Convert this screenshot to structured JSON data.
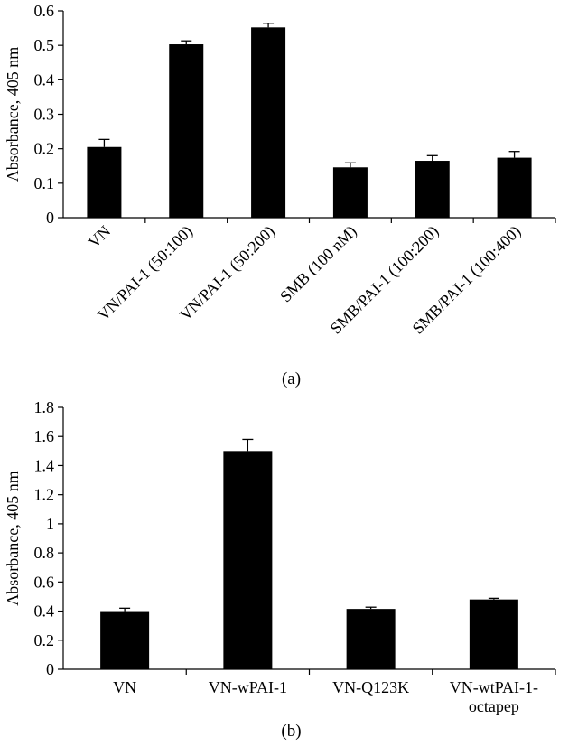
{
  "chart_data": [
    {
      "type": "bar",
      "panel_label": "(a)",
      "ylabel": "Absorbance, 405 nm",
      "ylim": [
        0,
        0.6
      ],
      "yticks": [
        0,
        0.1,
        0.2,
        0.3,
        0.4,
        0.5,
        0.6
      ],
      "ytick_labels": [
        "0",
        "0.1",
        "0.2",
        "0.3",
        "0.4",
        "0.5",
        "0.6"
      ],
      "categories": [
        "VN",
        "VN/PAI-1 (50:100)",
        "VN/PAI-1 (50:200)",
        "SMB (100 nM)",
        "SMB/PAI-1 (100:200)",
        "SMB/PAI-1 (100:400)"
      ],
      "values": [
        0.205,
        0.503,
        0.552,
        0.146,
        0.165,
        0.174
      ],
      "errors": [
        0.022,
        0.01,
        0.012,
        0.013,
        0.015,
        0.018
      ],
      "bar_color": "#000000"
    },
    {
      "type": "bar",
      "panel_label": "(b)",
      "ylabel": "Absorbance, 405 nm",
      "ylim": [
        0,
        1.8
      ],
      "yticks": [
        0,
        0.2,
        0.4,
        0.6,
        0.8,
        1,
        1.2,
        1.4,
        1.6,
        1.8
      ],
      "ytick_labels": [
        "0",
        "0.2",
        "0.4",
        "0.6",
        "0.8",
        "1",
        "1.2",
        "1.4",
        "1.6",
        "1.8"
      ],
      "categories": [
        "VN",
        "VN-wPAI-1",
        "VN-Q123K",
        "VN-wtPAI-1-\noctapep"
      ],
      "values": [
        0.4,
        1.5,
        0.415,
        0.48
      ],
      "errors": [
        0.02,
        0.08,
        0.012,
        0.008
      ],
      "bar_color": "#000000"
    }
  ]
}
